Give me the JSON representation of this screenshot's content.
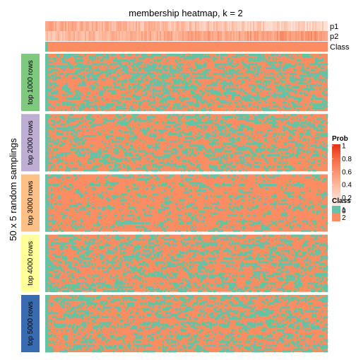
{
  "chart_data": {
    "type": "heatmap",
    "title": "membership heatmap, k = 2",
    "ylabel": "50 x 5 random samplings",
    "annotation_rows": [
      {
        "name": "p1",
        "kind": "prob"
      },
      {
        "name": "p2",
        "kind": "prob"
      },
      {
        "name": "Class",
        "kind": "class"
      }
    ],
    "row_groups": [
      {
        "label": "top 1000 rows",
        "color": "#7FC97F"
      },
      {
        "label": "top 2000 rows",
        "color": "#BEAED4"
      },
      {
        "label": "top 3000 rows",
        "color": "#FDC086"
      },
      {
        "label": "top 4000 rows",
        "color": "#FFFF99"
      },
      {
        "label": "top 5000 rows",
        "color": "#386CB0"
      }
    ],
    "class_colors": {
      "1": "#66C2A5",
      "2": "#FC8D62"
    },
    "group_class2_share": [
      0.6,
      0.68,
      0.8,
      0.68,
      0.68
    ],
    "legend": {
      "prob_title": "Prob",
      "prob_ticks": [
        "1",
        "0.8",
        "0.6",
        "0.4",
        "0.2",
        "0"
      ],
      "prob_gradient": [
        "#FFFFFF",
        "#FFDACB",
        "#FDB69A",
        "#F9906B",
        "#F2673F",
        "#EA2D12"
      ],
      "class_title": "Class",
      "class_items": [
        {
          "label": "1",
          "color": "#66C2A5"
        },
        {
          "label": "2",
          "color": "#FC8D62"
        }
      ]
    }
  }
}
